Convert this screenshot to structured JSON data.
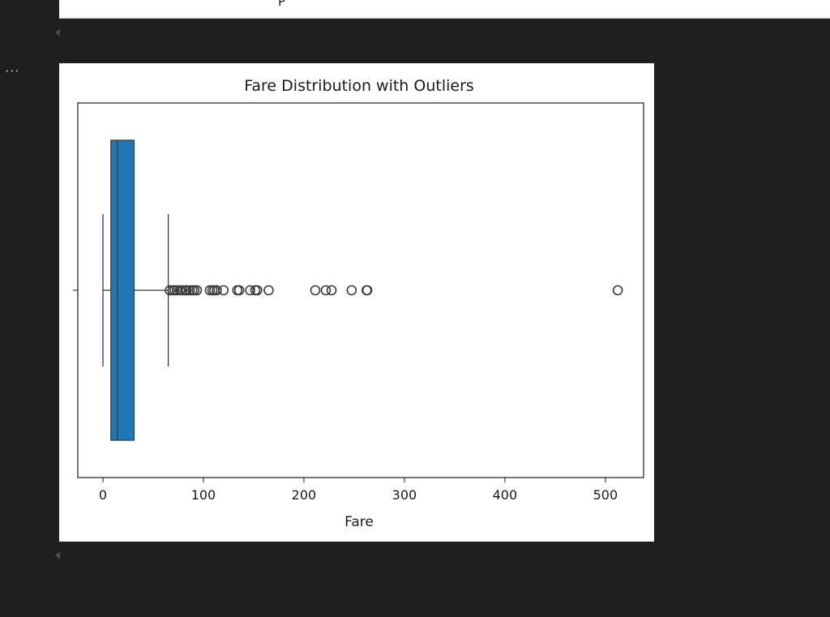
{
  "notebook": {
    "more_actions_label": "···",
    "previous_output_cut_label": "P"
  },
  "chart_data": {
    "type": "boxplot",
    "orientation": "horizontal",
    "title": "Fare Distribution with Outliers",
    "xlabel": "Fare",
    "ylabel": "",
    "xlim": [
      -25,
      538
    ],
    "xticks": [
      0,
      100,
      200,
      300,
      400,
      500
    ],
    "xtick_labels": [
      "0",
      "100",
      "200",
      "300",
      "400",
      "500"
    ],
    "grid": false,
    "legend": "none",
    "box_color": "#1f77b4",
    "stats": {
      "whisker_low": 0,
      "q1": 7.9,
      "median": 14.45,
      "q3": 31.0,
      "whisker_high": 65.0
    },
    "outliers": [
      66.6,
      69.3,
      71.3,
      73.5,
      76.7,
      78.9,
      81.9,
      83.2,
      86.5,
      89.1,
      91.1,
      93.5,
      106.4,
      108.9,
      110.9,
      113.3,
      120.0,
      133.7,
      135.6,
      146.5,
      151.6,
      153.5,
      164.9,
      211.3,
      221.8,
      227.5,
      247.5,
      262.4,
      263.0,
      512.3
    ]
  }
}
